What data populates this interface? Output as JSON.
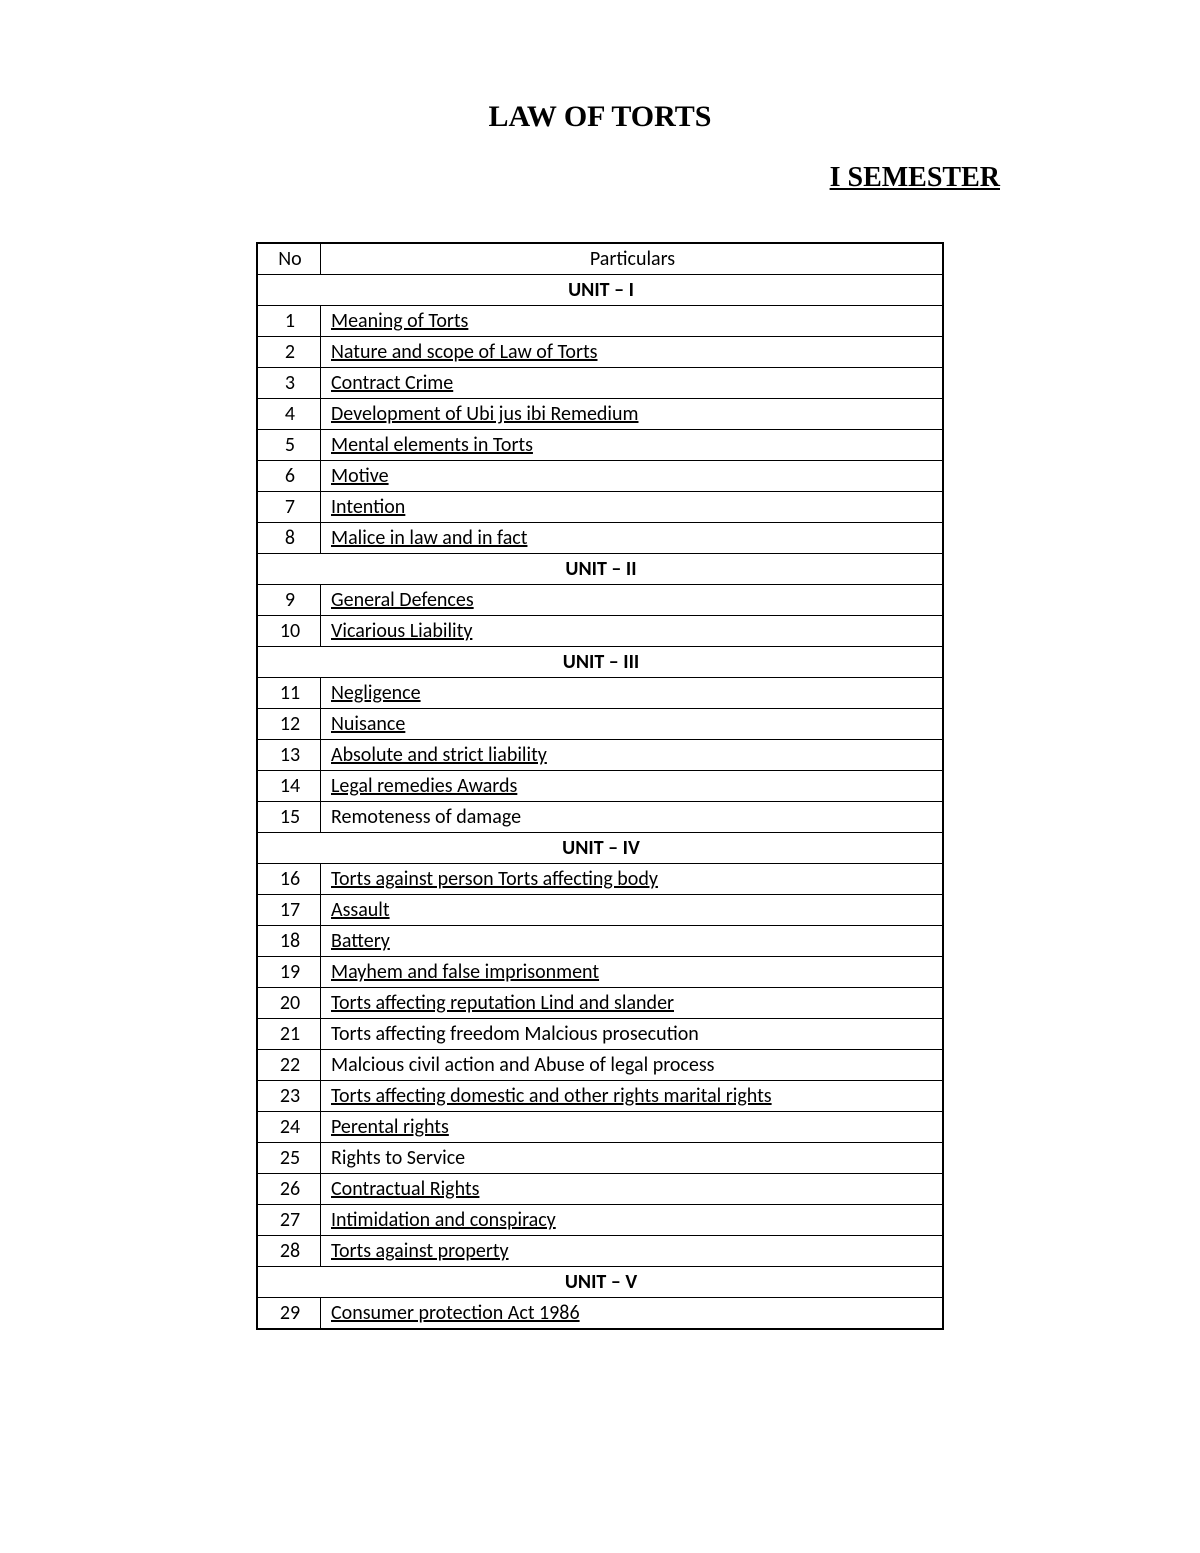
{
  "title": "LAW OF TORTS",
  "semester": "I SEMESTER",
  "columns": {
    "no": "No",
    "particulars": "Particulars"
  },
  "sections": [
    {
      "heading": "UNIT – I",
      "rows": [
        {
          "no": "1",
          "text": "Meaning of Torts",
          "link": true
        },
        {
          "no": "2",
          "text": "Nature and scope of Law of Torts",
          "link": true
        },
        {
          "no": "3",
          "text": "Contract Crime",
          "link": true
        },
        {
          "no": "4",
          "text": "Development of Ubi jus ibi Remedium",
          "link": true
        },
        {
          "no": "5",
          "text": "Mental elements in Torts",
          "link": true
        },
        {
          "no": "6",
          "text": "Motive",
          "link": true
        },
        {
          "no": "7",
          "text": "Intention",
          "link": true
        },
        {
          "no": "8",
          "text": "Malice in law and in fact",
          "link": true
        }
      ]
    },
    {
      "heading": "UNIT – II",
      "rows": [
        {
          "no": "9",
          "text": "General Defences",
          "link": true
        },
        {
          "no": "10",
          "text": "Vicarious Liability",
          "link": true
        }
      ]
    },
    {
      "heading": "UNIT – III",
      "rows": [
        {
          "no": "11",
          "text": "Negligence",
          "link": true
        },
        {
          "no": "12",
          "text": "Nuisance",
          "link": true
        },
        {
          "no": "13",
          "text": "Absolute and strict liability",
          "link": true
        },
        {
          "no": "14",
          "text": "Legal remedies Awards",
          "link": true
        },
        {
          "no": "15",
          "text": "Remoteness of damage",
          "link": false
        }
      ]
    },
    {
      "heading": "UNIT – IV",
      "rows": [
        {
          "no": "16",
          "text": "Torts against person   Torts affecting body",
          "link": true
        },
        {
          "no": "17",
          "text": "Assault",
          "link": true
        },
        {
          "no": "18",
          "text": "Battery",
          "link": true
        },
        {
          "no": "19",
          "text": "Mayhem and false imprisonment",
          "link": true
        },
        {
          "no": "20",
          "text": "Torts affecting reputation Lind and slander",
          "link": true
        },
        {
          "no": "21",
          "text": "Torts affecting freedom  Malcious prosecution",
          "link": false
        },
        {
          "no": "22",
          "text": "Malcious civil action and Abuse of legal process",
          "link": false
        },
        {
          "no": "23",
          "text": "Torts affecting domestic and other rights marital rights",
          "link": true
        },
        {
          "no": "24",
          "text": "Perental rights",
          "link": true
        },
        {
          "no": "25",
          "text": "Rights to Service",
          "link": false
        },
        {
          "no": "26",
          "text": "Contractual Rights",
          "link": true
        },
        {
          "no": "27",
          "text": "Intimidation and conspiracy",
          "link": true
        },
        {
          "no": "28",
          "text": "Torts against property",
          "link": true
        }
      ]
    },
    {
      "heading": "UNIT – V",
      "rows": [
        {
          "no": "29",
          "text": "Consumer protection Act 1986",
          "link": true
        }
      ]
    }
  ]
}
